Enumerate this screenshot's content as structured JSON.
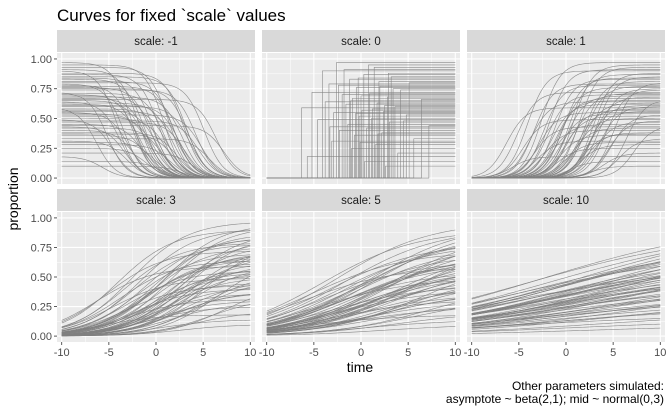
{
  "chart_data": {
    "type": "line",
    "title": "Curves for fixed `scale` values",
    "xlabel": "time",
    "ylabel": "proportion",
    "caption": [
      "Other parameters simulated:",
      "asymptote ~ beta(2,1); mid ~ normal(0,3)"
    ],
    "xlim": [
      -10.5,
      10.5
    ],
    "ylim": [
      -0.05,
      1.05
    ],
    "x_ticks": [
      -10,
      -5,
      0,
      5,
      10
    ],
    "x_tick_labels": [
      "-10",
      "-5",
      "0",
      "5",
      "10"
    ],
    "y_ticks": [
      0,
      0.25,
      0.5,
      0.75,
      1
    ],
    "y_tick_labels": [
      "0.00",
      "0.25",
      "0.50",
      "0.75",
      "1.00"
    ],
    "grid": true,
    "facet_layout": {
      "rows": 2,
      "cols": 3
    },
    "line_color": "#7f7f7f",
    "panel_background": "#ebebeb",
    "strip_background": "#d9d9d9",
    "curve_function": "asymptote / (1 + exp((mid - time) / scale))",
    "facets": [
      {
        "label": "scale: -1",
        "scale": -1
      },
      {
        "label": "scale: 0",
        "scale": 0
      },
      {
        "label": "scale: 1",
        "scale": 1
      },
      {
        "label": "scale: 3",
        "scale": 3
      },
      {
        "label": "scale: 5",
        "scale": 5
      },
      {
        "label": "scale: 10",
        "scale": 10
      }
    ],
    "series": [
      {
        "asymptote": 0.97,
        "mid": -2.6
      },
      {
        "asymptote": 0.93,
        "mid": 1.4
      },
      {
        "asymptote": 0.9,
        "mid": -4.1
      },
      {
        "asymptote": 0.87,
        "mid": 0.3
      },
      {
        "asymptote": 0.85,
        "mid": 3.2
      },
      {
        "asymptote": 0.83,
        "mid": -1.2
      },
      {
        "asymptote": 0.8,
        "mid": 5.1
      },
      {
        "asymptote": 0.79,
        "mid": -3.4
      },
      {
        "asymptote": 0.77,
        "mid": 2.0
      },
      {
        "asymptote": 0.76,
        "mid": -0.5
      },
      {
        "asymptote": 0.74,
        "mid": 4.2
      },
      {
        "asymptote": 0.72,
        "mid": -5.2
      },
      {
        "asymptote": 0.71,
        "mid": 0.9
      },
      {
        "asymptote": 0.7,
        "mid": -2.0
      },
      {
        "asymptote": 0.68,
        "mid": 2.8
      },
      {
        "asymptote": 0.67,
        "mid": -0.9
      },
      {
        "asymptote": 0.66,
        "mid": 6.4
      },
      {
        "asymptote": 0.64,
        "mid": -3.8
      },
      {
        "asymptote": 0.63,
        "mid": 1.7
      },
      {
        "asymptote": 0.62,
        "mid": -1.6
      },
      {
        "asymptote": 0.6,
        "mid": 3.6
      },
      {
        "asymptote": 0.59,
        "mid": -6.3
      },
      {
        "asymptote": 0.57,
        "mid": 0.1
      },
      {
        "asymptote": 0.56,
        "mid": 2.4
      },
      {
        "asymptote": 0.55,
        "mid": -2.9
      },
      {
        "asymptote": 0.53,
        "mid": 4.8
      },
      {
        "asymptote": 0.52,
        "mid": -0.2
      },
      {
        "asymptote": 0.5,
        "mid": 1.1
      },
      {
        "asymptote": 0.49,
        "mid": -4.6
      },
      {
        "asymptote": 0.47,
        "mid": 3.0
      },
      {
        "asymptote": 0.45,
        "mid": -1.4
      },
      {
        "asymptote": 0.44,
        "mid": 7.2
      },
      {
        "asymptote": 0.42,
        "mid": 0.6
      },
      {
        "asymptote": 0.4,
        "mid": -2.3
      },
      {
        "asymptote": 0.38,
        "mid": 2.2
      },
      {
        "asymptote": 0.36,
        "mid": -0.7
      },
      {
        "asymptote": 0.33,
        "mid": 5.6
      },
      {
        "asymptote": 0.31,
        "mid": -3.1
      },
      {
        "asymptote": 0.28,
        "mid": 1.5
      },
      {
        "asymptote": 0.25,
        "mid": -1.0
      },
      {
        "asymptote": 0.21,
        "mid": 3.9
      },
      {
        "asymptote": 0.18,
        "mid": -5.7
      },
      {
        "asymptote": 0.14,
        "mid": 0.4
      },
      {
        "asymptote": 0.1,
        "mid": 2.6
      },
      {
        "asymptote": 0.95,
        "mid": 0.8
      },
      {
        "asymptote": 0.91,
        "mid": -1.8
      },
      {
        "asymptote": 0.88,
        "mid": 2.9
      },
      {
        "asymptote": 0.84,
        "mid": -0.3
      },
      {
        "asymptote": 0.81,
        "mid": 1.9
      },
      {
        "asymptote": 0.78,
        "mid": -2.4
      },
      {
        "asymptote": 0.75,
        "mid": 3.4
      },
      {
        "asymptote": 0.69,
        "mid": 0.0
      },
      {
        "asymptote": 0.65,
        "mid": -1.1
      },
      {
        "asymptote": 0.61,
        "mid": 2.5
      },
      {
        "asymptote": 0.58,
        "mid": 1.2
      },
      {
        "asymptote": 0.54,
        "mid": -0.6
      },
      {
        "asymptote": 0.48,
        "mid": 4.5
      },
      {
        "asymptote": 0.43,
        "mid": -3.3
      },
      {
        "asymptote": 0.37,
        "mid": 1.8
      },
      {
        "asymptote": 0.3,
        "mid": -0.1
      }
    ]
  }
}
